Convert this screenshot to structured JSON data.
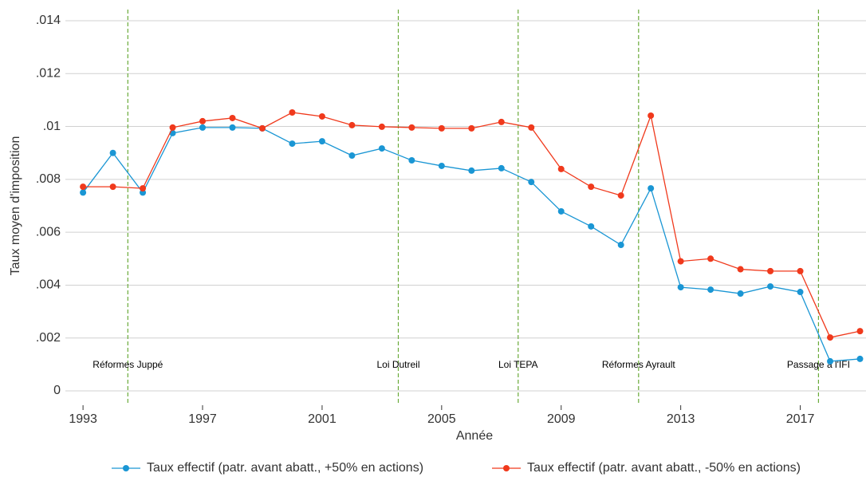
{
  "chart_data": {
    "type": "line",
    "x_label": "Année",
    "y_label": "Taux moyen d'imposition",
    "x": [
      1993,
      1994,
      1995,
      1996,
      1997,
      1998,
      1999,
      2000,
      2001,
      2002,
      2003,
      2004,
      2005,
      2006,
      2007,
      2008,
      2009,
      2010,
      2011,
      2012,
      2013,
      2014,
      2015,
      2016,
      2017,
      2018,
      2019
    ],
    "series": [
      {
        "name": "Taux effectif (patr. avant abatt., +50% en actions)",
        "color": "#1a96d4",
        "values": [
          0.0075,
          0.009,
          0.0075,
          0.00975,
          0.00996,
          0.00996,
          0.00993,
          0.00935,
          0.00944,
          0.0089,
          0.00917,
          0.00872,
          0.00851,
          0.00833,
          0.00842,
          0.0079,
          0.00679,
          0.00622,
          0.00552,
          0.00766,
          0.00392,
          0.00383,
          0.00368,
          0.00395,
          0.00374,
          0.00112,
          0.00121
        ]
      },
      {
        "name": "Taux effectif (patr. avant abatt., -50% en actions)",
        "color": "#f0391c",
        "values": [
          0.00772,
          0.00772,
          0.00766,
          0.00996,
          0.0102,
          0.01032,
          0.00993,
          0.01053,
          0.01038,
          0.01005,
          0.00999,
          0.00996,
          0.00993,
          0.00993,
          0.01017,
          0.00996,
          0.00839,
          0.00772,
          0.00739,
          0.01041,
          0.0049,
          0.005,
          0.0046,
          0.00453,
          0.00453,
          0.00202,
          0.00226
        ]
      }
    ],
    "xlim": [
      1992.41,
      2019.2
    ],
    "xticks": [
      1993,
      1997,
      2001,
      2005,
      2009,
      2013,
      2017
    ],
    "ylim": [
      -0.0005,
      0.0145
    ],
    "yticks": [
      0,
      {
        "value": 0.002,
        "label": ".002"
      },
      {
        "value": 0.004,
        "label": ".004"
      },
      {
        "value": 0.006,
        "label": ".006"
      },
      {
        "value": 0.008,
        "label": ".008"
      },
      {
        "value": 0.01,
        "label": ".01"
      },
      {
        "value": 0.012,
        "label": ".012"
      },
      {
        "value": 0.014,
        "label": ".014"
      }
    ],
    "grid": true,
    "legend": "bottom",
    "annotations": [
      {
        "x": 1994.5,
        "label": "Réformes Juppé"
      },
      {
        "x": 2003.55,
        "label": "Loi Dutreil"
      },
      {
        "x": 2007.56,
        "label": "Loi TEPA"
      },
      {
        "x": 2011.59,
        "label": "Réformes Ayrault"
      },
      {
        "x": 2017.61,
        "label": "Passage à l'IFI"
      }
    ],
    "annotation_color": "#6aaa3a"
  }
}
